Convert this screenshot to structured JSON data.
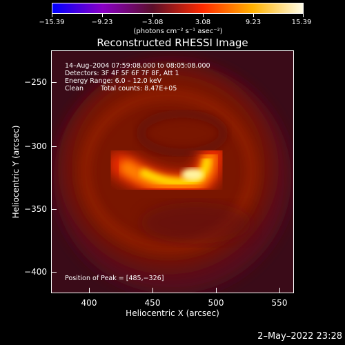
{
  "colorbar": {
    "ticks": [
      "−15.39",
      "−9.23",
      "−3.08",
      "3.08",
      "9.23",
      "15.39"
    ],
    "units": "(photons cm⁻² s⁻¹ asec⁻²)",
    "colors": [
      "#0000ff",
      "#8a00c6",
      "#5b0f2a",
      "#ff2a00",
      "#ffb100",
      "#fffde8"
    ]
  },
  "title": "Reconstructed RHESSI Image",
  "info": {
    "line1": "14–Aug–2004 07:59:08.000 to 08:05:08.000",
    "line2": "Detectors: 3F 4F 5F 6F 7F 8F, Att 1",
    "line3": "Energy Range: 6.0 – 12.0 keV",
    "line4_label": "Clean",
    "line4_counts": "Total counts: 8.47E+05",
    "peak": "Position of Peak = [485,−326]"
  },
  "axes": {
    "xlabel": "Heliocentric X (arcsec)",
    "ylabel": "Heliocentric Y (arcsec)",
    "xticks": [
      "400",
      "450",
      "500",
      "550"
    ],
    "yticks": [
      "−250",
      "−300",
      "−350",
      "−400"
    ]
  },
  "date": "2–May–2022 23:28"
}
